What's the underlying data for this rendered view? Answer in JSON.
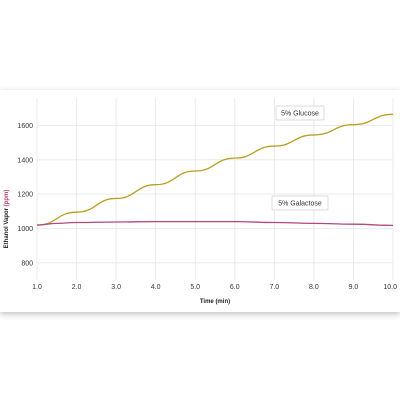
{
  "chart_data": {
    "type": "line",
    "title": "",
    "xlabel": "Time (min)",
    "ylabel_parts": [
      "Ethanol Vapor",
      " (ppm)"
    ],
    "xlim": [
      1.0,
      10.0
    ],
    "ylim": [
      700,
      1760
    ],
    "xticks": [
      "1.0",
      "2.0",
      "3.0",
      "4.0",
      "5.0",
      "6.0",
      "7.0",
      "8.0",
      "9.0",
      "10.0"
    ],
    "yticks": [
      "800",
      "1000",
      "1200",
      "1400",
      "1600"
    ],
    "grid": true,
    "series": [
      {
        "name": "5% Glucose",
        "color": "#b8a01e",
        "x": [
          1.0,
          2.0,
          3.0,
          4.0,
          5.0,
          6.0,
          7.0,
          8.0,
          9.0,
          10.0
        ],
        "y": [
          1020,
          1095,
          1175,
          1255,
          1335,
          1410,
          1480,
          1545,
          1605,
          1665
        ]
      },
      {
        "name": "5% Galactose",
        "color": "#b5487a",
        "x": [
          1.0,
          1.5,
          2.0,
          3.0,
          4.0,
          5.0,
          6.0,
          7.0,
          8.0,
          9.0,
          10.0
        ],
        "y": [
          1020,
          1030,
          1035,
          1038,
          1040,
          1040,
          1040,
          1035,
          1030,
          1025,
          1018
        ]
      }
    ],
    "annotations": [
      "5% Glucose",
      "5% Galactose"
    ]
  }
}
